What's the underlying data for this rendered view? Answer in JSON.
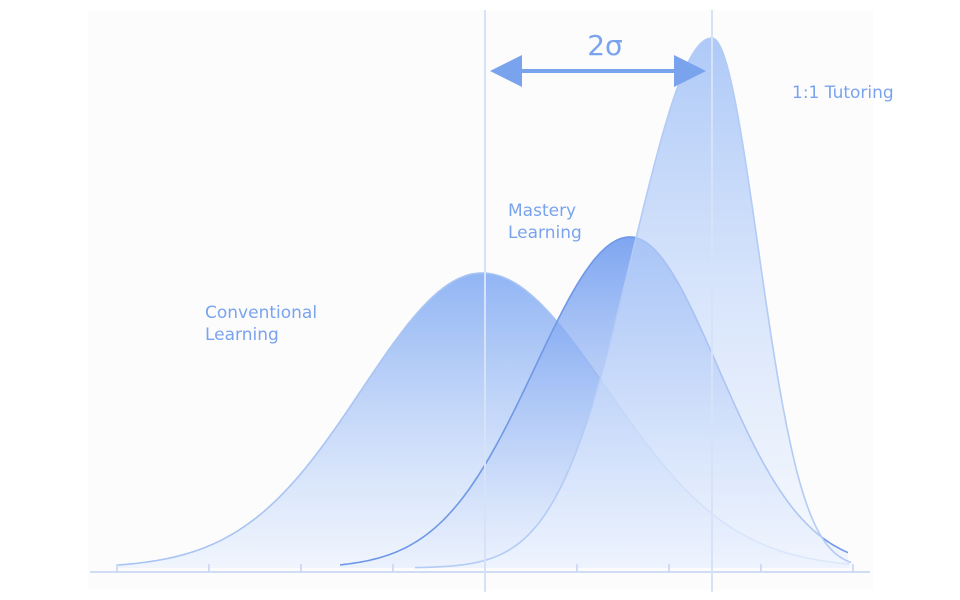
{
  "gap_label": "2σ",
  "curves": [
    {
      "label": [
        "Conventional",
        "Learning"
      ]
    },
    {
      "label": [
        "Mastery",
        "Learning"
      ]
    },
    {
      "label": [
        "1:1 Tutoring"
      ]
    }
  ]
}
